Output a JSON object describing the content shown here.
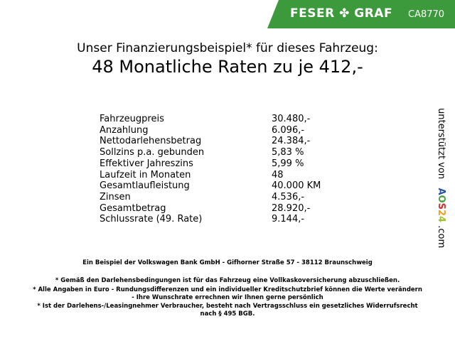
{
  "header": {
    "brand": "FESER ✤ GRAF",
    "code": "CA8770",
    "color": "#3c9a3c"
  },
  "title": {
    "line1": "Unser Finanzierungsbeispiel* für dieses Fahrzeug:",
    "line2": "48 Monatliche Raten zu je 412,-"
  },
  "rows": [
    {
      "label": "Fahrzeugpreis",
      "value": "30.480,-"
    },
    {
      "label": "Anzahlung",
      "value": "6.096,-"
    },
    {
      "label": "Nettodarlehensbetrag",
      "value": "24.384,-"
    },
    {
      "label": "Sollzins p.a. gebunden",
      "value": "5,83 %"
    },
    {
      "label": "Effektiver Jahreszins",
      "value": "5,99 %"
    },
    {
      "label": "Laufzeit in Monaten",
      "value": "48"
    },
    {
      "label": "Gesamtlaufleistung",
      "value": "40.000 KM"
    },
    {
      "label": "Zinsen",
      "value": "4.536,-"
    },
    {
      "label": "Gesamtbetrag",
      "value": "28.920,-"
    },
    {
      "label": "Schlussrate (49. Rate)",
      "value": "9.144,-"
    }
  ],
  "side": {
    "text": "unterstützt von",
    "logo": "AOS24",
    ".com": ".com"
  },
  "footer": {
    "bank": "Ein Beispiel der Volkswagen Bank GmbH - Gifhorner Straße 57 - 38112 Braunschweig",
    "n1": "* Gemäß den Darlehensbedingungen ist für das Fahrzeug eine Vollkaskoversicherung abzuschließen.",
    "n2a": "* Alle Angaben in Euro - Rundungsdifferenzen und ein individueller Kreditschutzbrief können die Werte verändern",
    "n2b": "- Ihre Wunschrate errechnen wir Ihnen gerne persönlich",
    "n3a": "* Ist der Darlehens-/Leasingnehmer Verbraucher, besteht nach Vertragsschluss ein gesetzliches Widerrufsrecht",
    "n3b": "nach § 495 BGB."
  }
}
